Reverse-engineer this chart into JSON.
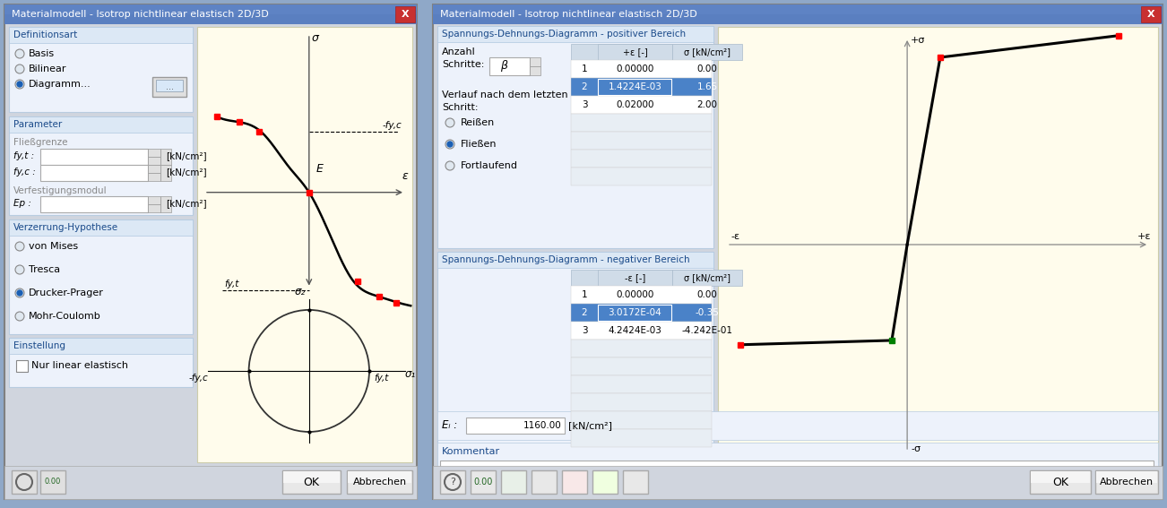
{
  "title1": "Materialmodell - Isotrop nichtlinear elastisch 2D/3D",
  "title2": "Materialmodell - Isotrop nichtlinear elastisch 2D/3D",
  "pos_rows": [
    [
      "1",
      "0.00000",
      "0.00"
    ],
    [
      "2",
      "1.4224E-03",
      "1.65"
    ],
    [
      "3",
      "0.02000",
      "2.00"
    ]
  ],
  "neg_rows": [
    [
      "1",
      "0.00000",
      "0.00"
    ],
    [
      "2",
      "3.0172E-04",
      "-0.35"
    ],
    [
      "3",
      "4.2424E-03",
      "-4.242E-01"
    ]
  ],
  "ei_val": "1160.00"
}
